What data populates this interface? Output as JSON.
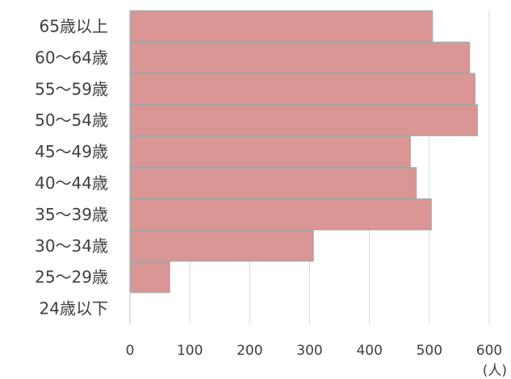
{
  "chart_data": {
    "type": "bar",
    "orientation": "horizontal",
    "categories": [
      "65歳以上",
      "60〜64歳",
      "55〜59歳",
      "50〜54歳",
      "45〜49歳",
      "40〜44歳",
      "35〜39歳",
      "30〜34歳",
      "25〜29歳",
      "24歳以下"
    ],
    "values": [
      505,
      567,
      576,
      580,
      468,
      478,
      503,
      306,
      66,
      0
    ],
    "xlim": [
      0,
      600
    ],
    "x_ticks": [
      0,
      100,
      200,
      300,
      400,
      500,
      600
    ],
    "x_unit": "(人)",
    "grid": "vertical",
    "legend": "none",
    "colors": {
      "bar_fill": "#d99694",
      "bar_stroke": "#a6a6a6",
      "grid": "#d9d9d9",
      "axis": "#bfbfbf",
      "text": "#404040"
    }
  }
}
